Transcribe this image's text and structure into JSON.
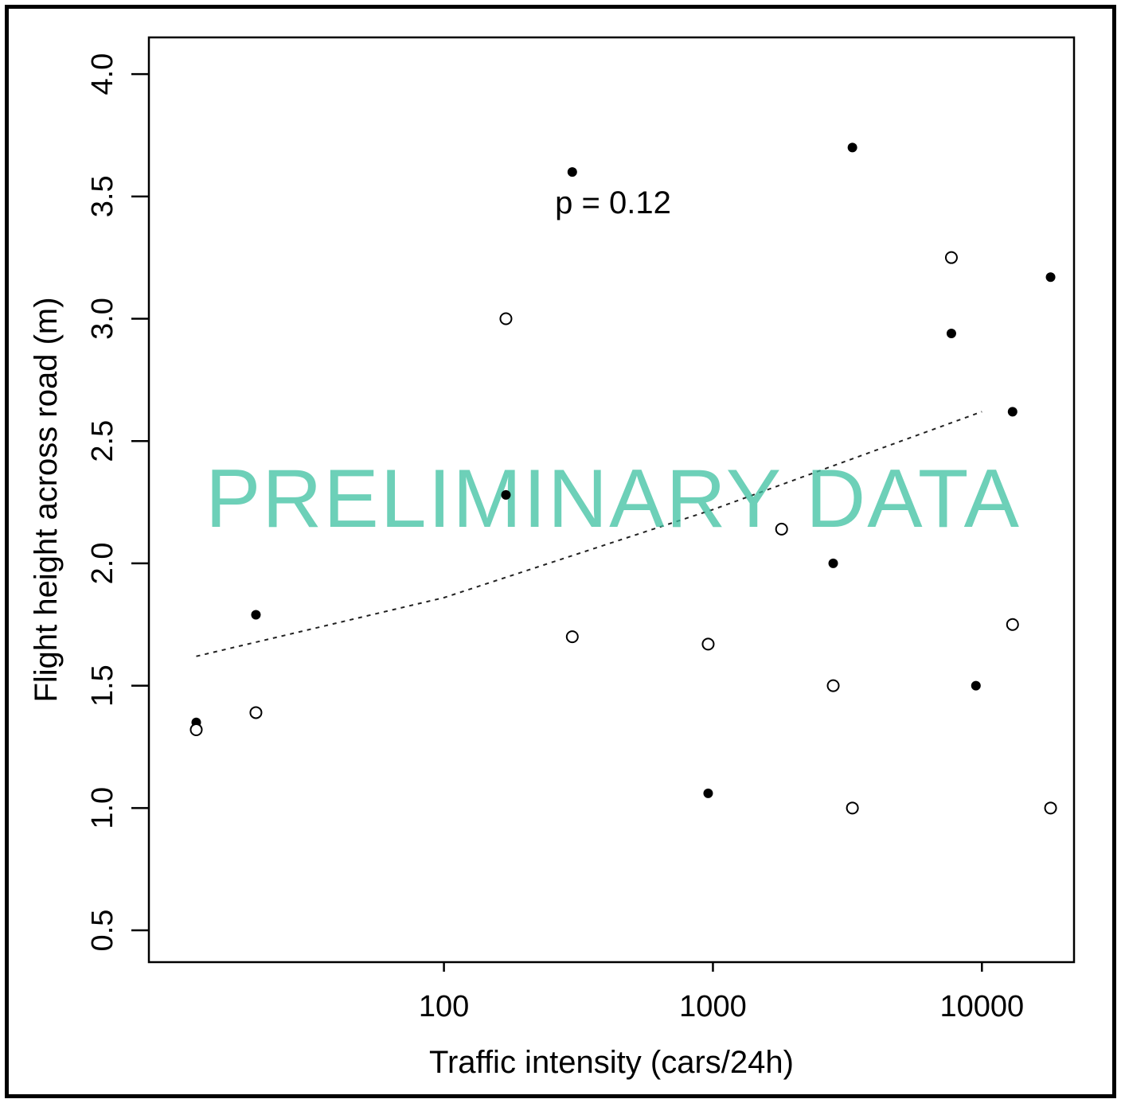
{
  "chart_data": {
    "type": "scatter",
    "xlabel": "Traffic intensity (cars/24h)",
    "ylabel": "Flight height across road (m)",
    "x_scale": "log",
    "x_ticks": [
      100,
      1000,
      10000
    ],
    "x_tick_labels": [
      "100",
      "1000",
      "10000"
    ],
    "y_ticks": [
      0.5,
      1.0,
      1.5,
      2.0,
      2.5,
      3.0,
      3.5,
      4.0
    ],
    "y_tick_labels": [
      "0.5",
      "1.0",
      "1.5",
      "2.0",
      "2.5",
      "3.0",
      "3.5",
      "4.0"
    ],
    "xlim": [
      8,
      22000
    ],
    "ylim": [
      0.37,
      4.15
    ],
    "grid": false,
    "annotation": "p = 0.12",
    "watermark": "PRELIMINARY DATA",
    "watermark_color": "#3cc0a0",
    "series": [
      {
        "marker": "filled-circle",
        "points": [
          {
            "x": 12,
            "y": 1.35
          },
          {
            "x": 20,
            "y": 1.79
          },
          {
            "x": 170,
            "y": 2.28
          },
          {
            "x": 300,
            "y": 3.6
          },
          {
            "x": 960,
            "y": 1.06
          },
          {
            "x": 2800,
            "y": 2.0
          },
          {
            "x": 3300,
            "y": 3.7
          },
          {
            "x": 7700,
            "y": 2.94
          },
          {
            "x": 9500,
            "y": 1.5
          },
          {
            "x": 13000,
            "y": 2.62
          },
          {
            "x": 18000,
            "y": 3.17
          }
        ]
      },
      {
        "marker": "open-circle",
        "points": [
          {
            "x": 12,
            "y": 1.32
          },
          {
            "x": 20,
            "y": 1.39
          },
          {
            "x": 170,
            "y": 3.0
          },
          {
            "x": 300,
            "y": 1.7
          },
          {
            "x": 960,
            "y": 1.67
          },
          {
            "x": 1800,
            "y": 2.14
          },
          {
            "x": 2800,
            "y": 1.5
          },
          {
            "x": 3300,
            "y": 1.0
          },
          {
            "x": 7700,
            "y": 3.25
          },
          {
            "x": 13000,
            "y": 1.75
          },
          {
            "x": 18000,
            "y": 1.0
          }
        ]
      }
    ],
    "trend_line": {
      "style": "dotted",
      "points": [
        {
          "x": 12,
          "y": 1.62
        },
        {
          "x": 100,
          "y": 1.86
        },
        {
          "x": 1000,
          "y": 2.22
        },
        {
          "x": 10000,
          "y": 2.62
        }
      ]
    }
  }
}
